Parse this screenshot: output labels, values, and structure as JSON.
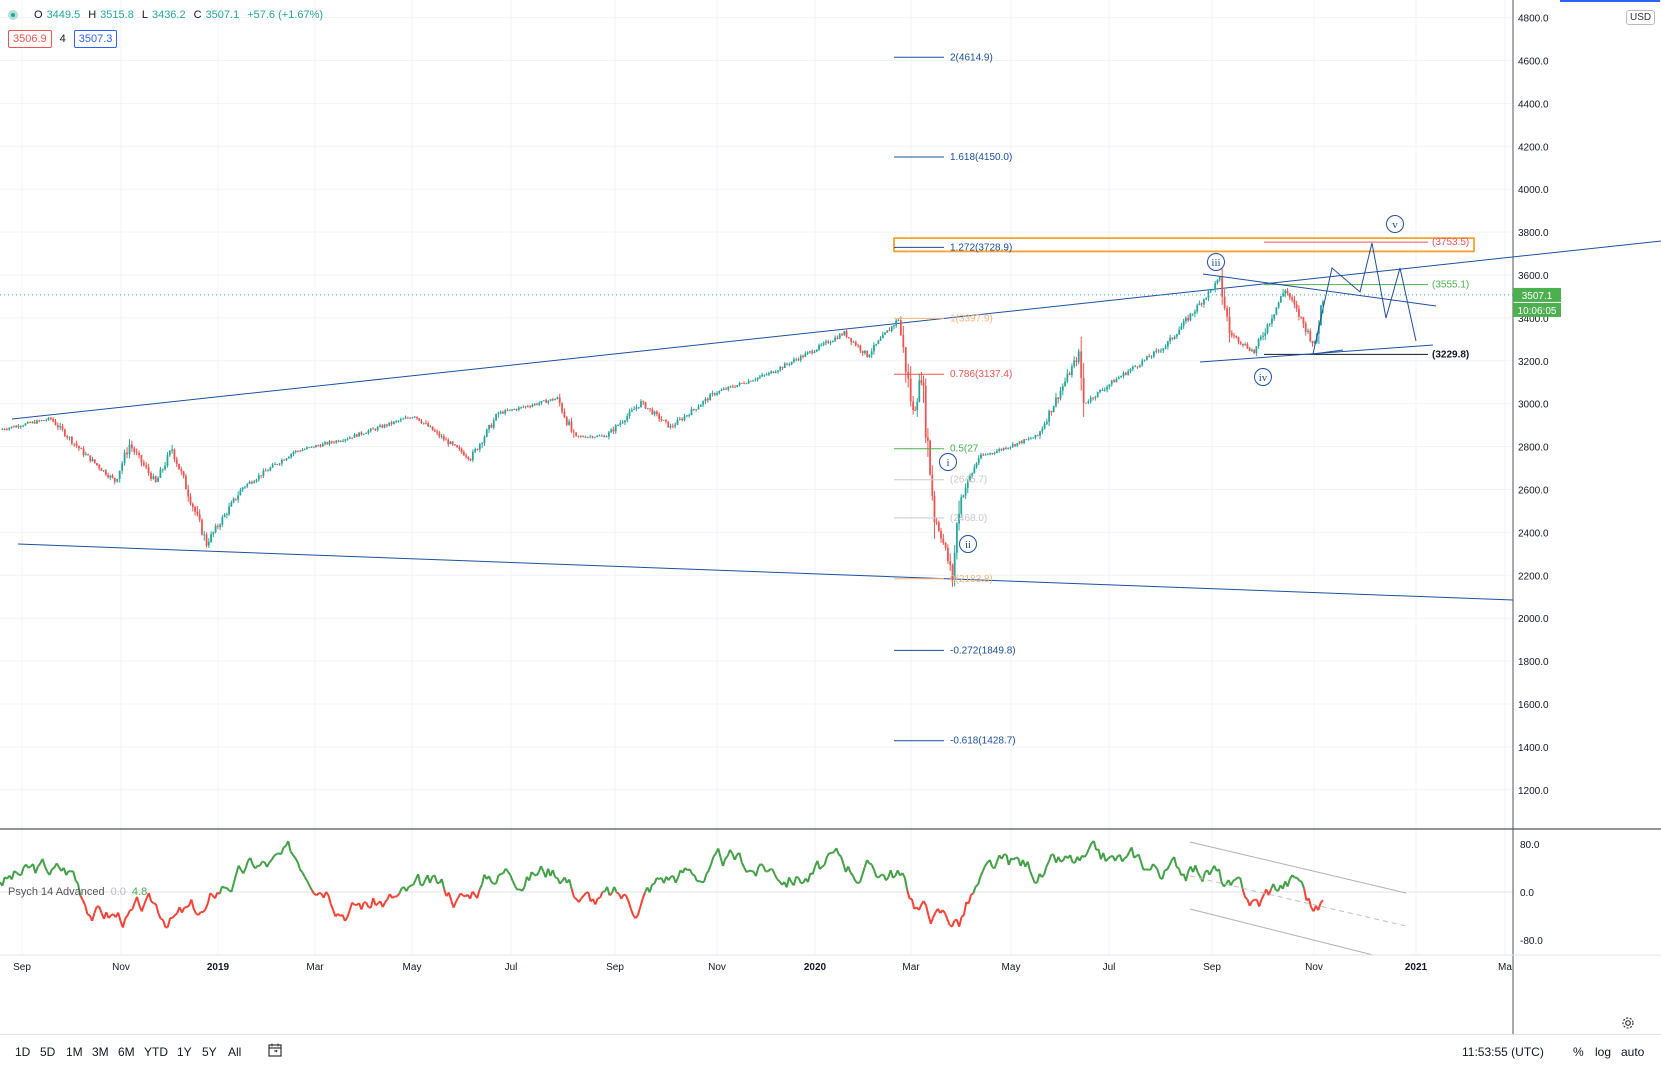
{
  "ohlc": {
    "o_key": "O",
    "o": "3449.5",
    "h_key": "H",
    "h": "3515.8",
    "l_key": "L",
    "l": "3436.2",
    "c_key": "C",
    "c": "3507.1",
    "change": "+57.6 (+1.67%)"
  },
  "quote": {
    "bid": "3506.9",
    "spread": "4",
    "ask": "3507.3"
  },
  "currency": "USD",
  "price_badge": {
    "price": "3507.1",
    "countdown": "10:06:05"
  },
  "indicator": {
    "name": "Psych 14 Advanced",
    "v1": "0.0",
    "v2": "4.8"
  },
  "toolbar": {
    "timeframes": [
      "1D",
      "5D",
      "1M",
      "3M",
      "6M",
      "YTD",
      "1Y",
      "5Y",
      "All"
    ],
    "clock": "11:53:55 (UTC)",
    "percent": "%",
    "log": "log",
    "auto": "auto"
  },
  "colors": {
    "up": "#26a69a",
    "down": "#ef5350",
    "line": "#1e4fa1",
    "fib_blue": "#1a4d9e",
    "fib_red": "#ef5350",
    "fib_green": "#4caf50",
    "fib_orange": "#f5b57a",
    "box": "#f7a035",
    "osc_up": "#43a047",
    "osc_down": "#f44336"
  },
  "chart_data": [
    {
      "type": "candlestick",
      "x_tick_labels": [
        "Sep",
        "Nov",
        "2019",
        "Mar",
        "May",
        "Jul",
        "Sep",
        "Nov",
        "2020",
        "Mar",
        "May",
        "Jul",
        "Sep",
        "Nov",
        "2021",
        "Ma"
      ],
      "y_tick_labels": [
        "1200.0",
        "1400.0",
        "1600.0",
        "1800.0",
        "2000.0",
        "2200.0",
        "2400.0",
        "2600.0",
        "2800.0",
        "3000.0",
        "3200.0",
        "3400.0",
        "3600.0",
        "3800.0",
        "4000.0",
        "4200.0",
        "4400.0",
        "4600.0",
        "4800.0"
      ],
      "ylim": [
        1030,
        4870
      ],
      "price_path": [
        [
          "2018-08-20",
          2880
        ],
        [
          "2018-09-20",
          2930
        ],
        [
          "2018-10-10",
          2770
        ],
        [
          "2018-10-29",
          2640
        ],
        [
          "2018-11-07",
          2810
        ],
        [
          "2018-11-23",
          2630
        ],
        [
          "2018-12-03",
          2790
        ],
        [
          "2018-12-24",
          2350
        ],
        [
          "2019-01-15",
          2610
        ],
        [
          "2019-02-15",
          2775
        ],
        [
          "2019-03-20",
          2840
        ],
        [
          "2019-04-30",
          2945
        ],
        [
          "2019-05-15",
          2850
        ],
        [
          "2019-06-03",
          2745
        ],
        [
          "2019-06-20",
          2955
        ],
        [
          "2019-07-26",
          3025
        ],
        [
          "2019-08-05",
          2845
        ],
        [
          "2019-08-25",
          2850
        ],
        [
          "2019-09-15",
          3005
        ],
        [
          "2019-10-03",
          2890
        ],
        [
          "2019-10-30",
          3050
        ],
        [
          "2019-12-02",
          3140
        ],
        [
          "2019-12-27",
          3240
        ],
        [
          "2020-01-17",
          3330
        ],
        [
          "2020-01-31",
          3225
        ],
        [
          "2020-02-19",
          3395
        ],
        [
          "2020-02-28",
          2950
        ],
        [
          "2020-03-04",
          3130
        ],
        [
          "2020-03-12",
          2480
        ],
        [
          "2020-03-16",
          2390
        ],
        [
          "2020-03-23",
          2190
        ],
        [
          "2020-03-27",
          2540
        ],
        [
          "2020-04-08",
          2750
        ],
        [
          "2020-05-14",
          2850
        ],
        [
          "2020-06-08",
          3230
        ],
        [
          "2020-06-11",
          3000
        ],
        [
          "2020-07-01",
          3115
        ],
        [
          "2020-07-31",
          3270
        ],
        [
          "2020-09-02",
          3580
        ],
        [
          "2020-09-08",
          3330
        ],
        [
          "2020-09-23",
          3240
        ],
        [
          "2020-10-12",
          3535
        ],
        [
          "2020-10-30",
          3270
        ],
        [
          "2020-11-04",
          3507
        ]
      ],
      "fib_levels": [
        {
          "label": "2(4614.9)",
          "value": 4614.9,
          "color": "blue"
        },
        {
          "label": "1.618(4150.0)",
          "value": 4150.0,
          "color": "blue"
        },
        {
          "label": "1.272(3728.9)",
          "value": 3728.9,
          "color": "blue"
        },
        {
          "label": "1(3397.9)",
          "value": 3397.9,
          "color": "orange"
        },
        {
          "label": "0.786(3137.4)",
          "value": 3137.4,
          "color": "red"
        },
        {
          "label": "0.5(27",
          "value": 2790,
          "color": "green"
        },
        {
          "label": "(2645.7)",
          "value": 2645.7,
          "color": "gray"
        },
        {
          "label": "(2468.0)",
          "value": 2468.0,
          "color": "gray"
        },
        {
          "label": "0(2183.8)",
          "value": 2183.8,
          "color": "orange"
        },
        {
          "label": "-0.272(1849.8)",
          "value": 1849.8,
          "color": "blue"
        },
        {
          "label": "-0.618(1428.7)",
          "value": 1428.7,
          "color": "blue"
        }
      ],
      "right_levels": [
        {
          "label": "(3753.5)",
          "value": 3753.5,
          "color": "red"
        },
        {
          "label": "(3555.1)",
          "value": 3555.1,
          "color": "green"
        },
        {
          "label": "(3229.8)",
          "value": 3229.8,
          "color": "black"
        }
      ],
      "wave_labels": [
        "i",
        "ii",
        "iii",
        "iv",
        "v"
      ]
    },
    {
      "type": "line",
      "name": "Psych 14 Advanced",
      "y_tick_labels": [
        "80.0",
        "0.0",
        "-80.0"
      ],
      "ylim": [
        -100,
        100
      ]
    }
  ]
}
